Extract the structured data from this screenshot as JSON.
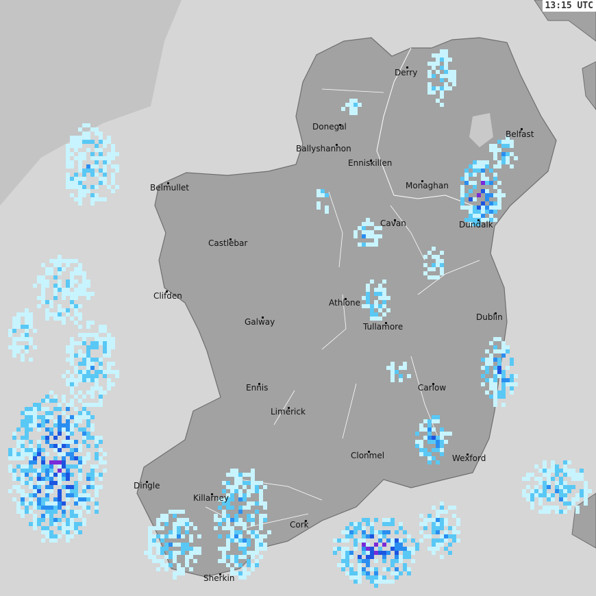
{
  "timestamp": "13:15 UTC",
  "colors": {
    "sea": "#d6d6d6",
    "outer": "#c4c4c4",
    "land": "#a2a2a2",
    "border": "#ffffff",
    "rain_light": "#c8f4ff",
    "rain_mid": "#59c8f5",
    "rain_heavy": "#2a8ef0",
    "rain_very_heavy": "#1d55e0",
    "rain_extreme": "#7a2ad8"
  },
  "cities": [
    "Derry",
    "Donegal",
    "Ballyshannon",
    "Enniskillen",
    "Belfast",
    "Belmullet",
    "Monaghan",
    "Cavan",
    "Dundalk",
    "Castlebar",
    "Clifden",
    "Athlone",
    "Galway",
    "Tullamore",
    "Dublin",
    "Ennis",
    "Carlow",
    "Limerick",
    "Clonmel",
    "Wexford",
    "Dingle",
    "Killarney",
    "Cork",
    "Sherkin"
  ]
}
